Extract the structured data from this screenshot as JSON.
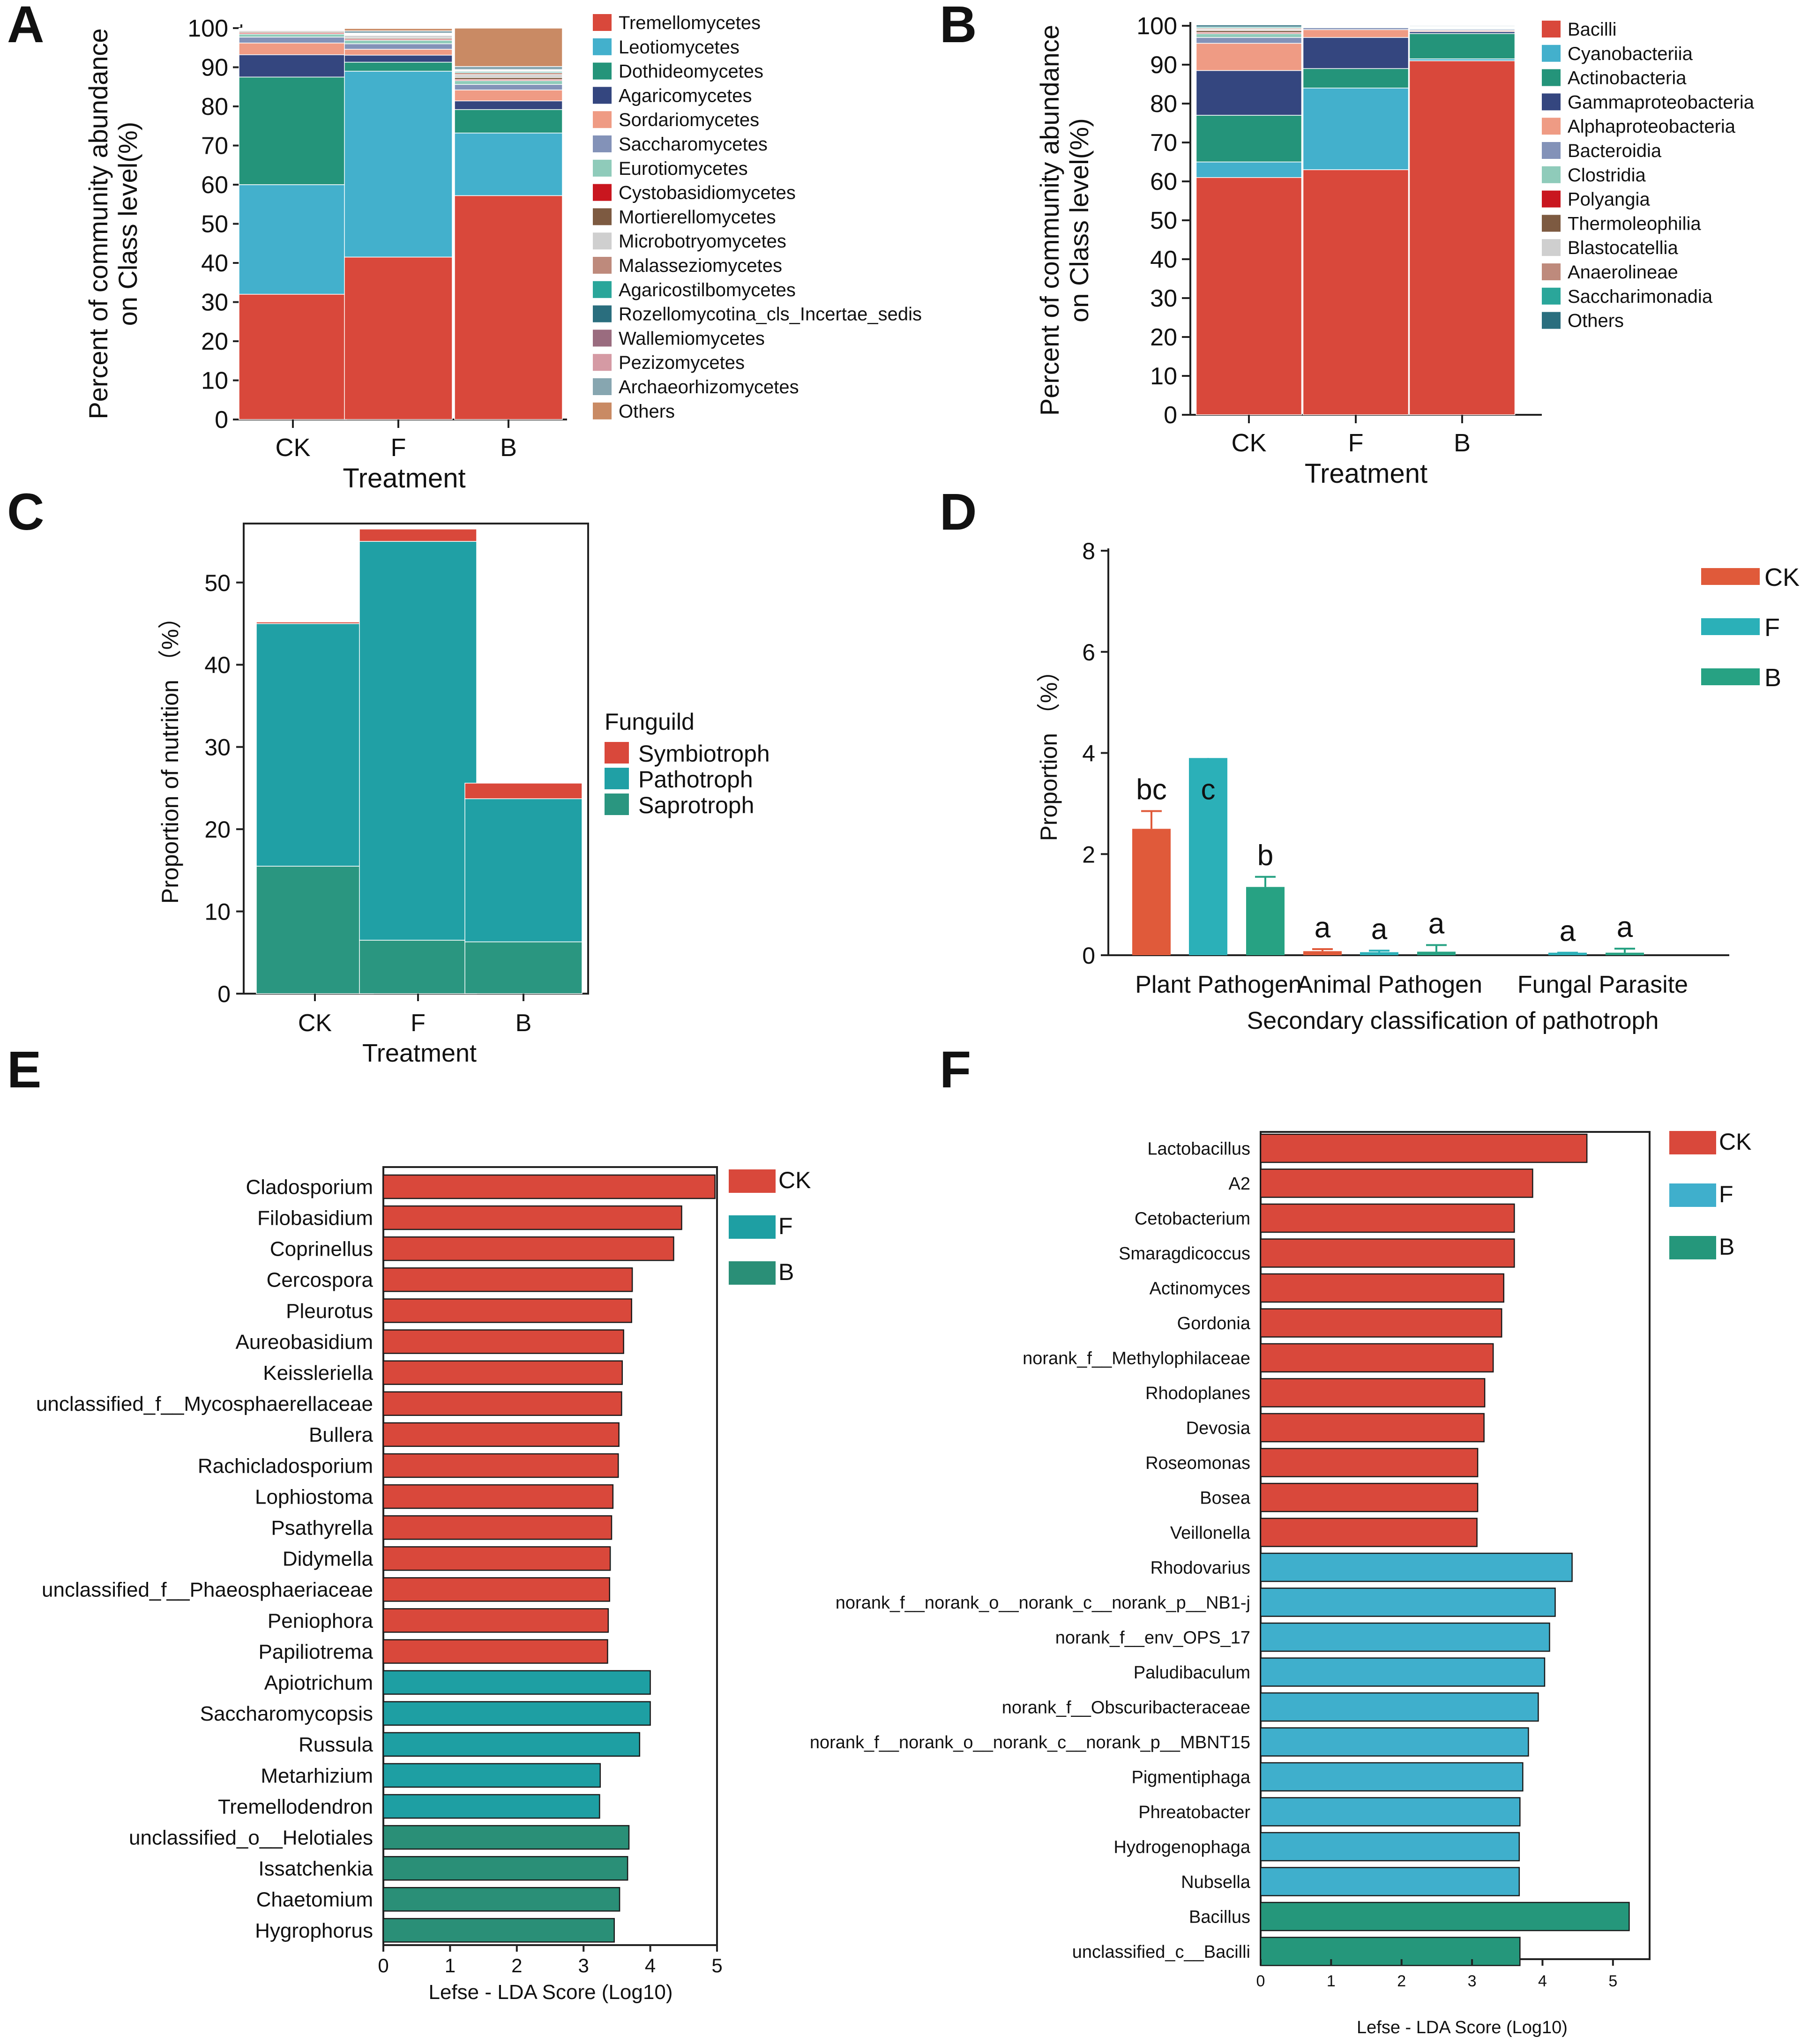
{
  "figure": {
    "panels": [
      "A",
      "B",
      "C",
      "D",
      "E",
      "F"
    ]
  },
  "colors": {
    "A": [
      "#d9483b",
      "#43b0cc",
      "#24947a",
      "#34467f",
      "#ef9b84",
      "#8392b8",
      "#8fcbba",
      "#c9161f",
      "#7d5a41",
      "#cfcfcf",
      "#be8a7c",
      "#2aa69a",
      "#2a6e7e",
      "#9a6c7f",
      "#d59aa4",
      "#87a6b0",
      "#c98a64"
    ],
    "B": [
      "#d9483b",
      "#43b0cc",
      "#24947a",
      "#34467f",
      "#ef9b84",
      "#8392b8",
      "#8fcbba",
      "#c9161f",
      "#7d5a41",
      "#cfcfcf",
      "#be8a7c",
      "#2aa69a",
      "#2a6e7e"
    ],
    "C": [
      "#2a9680",
      "#20a0a5",
      "#d9483b"
    ],
    "D": [
      "#e05a3a",
      "#2bb0b8",
      "#27a283"
    ],
    "E": {
      "CK": "#d9483b",
      "F": "#1e9fa3",
      "B": "#2a8f77"
    },
    "F": {
      "CK": "#d9483b",
      "F": "#3fafcc",
      "B": "#25977b"
    }
  },
  "chart_data": [
    {
      "panel": "A",
      "type": "bar",
      "stacked": true,
      "ylabel": "Percent of community abundance\non Class level(%)",
      "xlabel": "Treatment",
      "categories": [
        "CK",
        "F",
        "B"
      ],
      "ylim": [
        0,
        100
      ],
      "yticks": [
        "0",
        "10",
        "20",
        "30",
        "40",
        "50",
        "60",
        "70",
        "80",
        "90",
        "100"
      ],
      "series": [
        {
          "name": "Tremellomycetes",
          "values": [
            32,
            41.5,
            57.2
          ]
        },
        {
          "name": "Leotiomycetes",
          "values": [
            28,
            47.5,
            16
          ]
        },
        {
          "name": "Dothideomycetes",
          "values": [
            27.5,
            2.3,
            6
          ]
        },
        {
          "name": "Agaricomycetes",
          "values": [
            5.7,
            1.8,
            2.2
          ]
        },
        {
          "name": "Sordariomycetes",
          "values": [
            3,
            1.5,
            2.8
          ]
        },
        {
          "name": "Saccharomycetes",
          "values": [
            1.5,
            1.4,
            1.4
          ]
        },
        {
          "name": "Eurotiomycetes",
          "values": [
            0.8,
            0.9,
            1
          ]
        },
        {
          "name": "Cystobasidiomycetes",
          "values": [
            0.3,
            0.3,
            0.3
          ]
        },
        {
          "name": "Mortierellomycetes",
          "values": [
            0.3,
            0.3,
            0.5
          ]
        },
        {
          "name": "Microbotryomycetes",
          "values": [
            0.3,
            0.6,
            0.7
          ]
        },
        {
          "name": "Malasseziomycetes",
          "values": [
            0.1,
            0.2,
            0.5
          ]
        },
        {
          "name": "Agaricostilbomycetes",
          "values": [
            0.1,
            0.1,
            0.3
          ]
        },
        {
          "name": "Rozellomycotina_cls_Incertae_sedis",
          "values": [
            0.1,
            0.1,
            0.1
          ]
        },
        {
          "name": "Wallemiomycetes",
          "values": [
            0.1,
            0.1,
            0.2
          ]
        },
        {
          "name": "Pezizomycetes",
          "values": [
            0.1,
            0.1,
            0.2
          ]
        },
        {
          "name": "Archaeorhizomycetes",
          "values": [
            0.1,
            0.6,
            0.8
          ]
        },
        {
          "name": "Others",
          "values": [
            0,
            0.6,
            9.8
          ]
        }
      ]
    },
    {
      "panel": "B",
      "type": "bar",
      "stacked": true,
      "ylabel": "Percent of community abundance\non Class level(%)",
      "xlabel": "Treatment",
      "categories": [
        "CK",
        "F",
        "B"
      ],
      "ylim": [
        0,
        100
      ],
      "yticks": [
        "0",
        "10",
        "20",
        "30",
        "40",
        "50",
        "60",
        "70",
        "80",
        "90",
        "100"
      ],
      "series": [
        {
          "name": "Bacilli",
          "values": [
            61,
            63,
            91
          ]
        },
        {
          "name": "Cyanobacteriia",
          "values": [
            4,
            21,
            0.5
          ]
        },
        {
          "name": "Actinobacteria",
          "values": [
            12,
            5,
            6.5
          ]
        },
        {
          "name": "Gammaproteobacteria",
          "values": [
            11.5,
            8,
            0.5
          ]
        },
        {
          "name": "Alphaproteobacteria",
          "values": [
            7,
            2,
            0.3
          ]
        },
        {
          "name": "Bacteroidia",
          "values": [
            1.5,
            0.5,
            0.3
          ]
        },
        {
          "name": "Clostridia",
          "values": [
            1,
            0.2,
            0.2
          ]
        },
        {
          "name": "Polyangia",
          "values": [
            0.3,
            0.1,
            0.1
          ]
        },
        {
          "name": "Thermoleophilia",
          "values": [
            0.5,
            0.1,
            0.1
          ]
        },
        {
          "name": "Blastocatellia",
          "values": [
            0.3,
            0.1,
            0.1
          ]
        },
        {
          "name": "Anaerolineae",
          "values": [
            0.3,
            0.1,
            0.1
          ]
        },
        {
          "name": "Saccharimonadia",
          "values": [
            0.3,
            0.1,
            0.1
          ]
        },
        {
          "name": "Others",
          "values": [
            0.5,
            0.1,
            0.2
          ]
        }
      ]
    },
    {
      "panel": "C",
      "type": "bar",
      "stacked": true,
      "ylabel": "Proportion of nutrition （%）",
      "xlabel": "Treatment",
      "legend_title": "Funguild",
      "categories": [
        "CK",
        "F",
        "B"
      ],
      "ylim": [
        0,
        57
      ],
      "yticks": [
        "0",
        "10",
        "20",
        "30",
        "40",
        "50"
      ],
      "series": [
        {
          "name": "Saprotroph",
          "values": [
            15.5,
            6.5,
            6.3
          ]
        },
        {
          "name": "Pathotroph",
          "values": [
            29.5,
            48.5,
            17.4
          ]
        },
        {
          "name": "Symbiotroph",
          "values": [
            0.2,
            1.5,
            1.9
          ]
        }
      ],
      "legend_order": [
        "Symbiotroph",
        "Pathotroph",
        "Saprotroph"
      ]
    },
    {
      "panel": "D",
      "type": "bar",
      "grouped": true,
      "ylabel": "Proportion （%）",
      "xlabel": "Secondary classification of pathotroph",
      "categories": [
        "Plant Pathogen",
        "Animal Pathogen",
        "Fungal Parasite"
      ],
      "ylim": [
        0,
        8
      ],
      "yticks": [
        "0",
        "2",
        "4",
        "6",
        "8"
      ],
      "series": [
        {
          "name": "CK",
          "values": [
            2.5,
            0.08,
            0
          ],
          "errors": [
            2.85,
            0.12,
            0
          ],
          "letters": [
            "bc",
            "a",
            ""
          ]
        },
        {
          "name": "F",
          "values": [
            3.9,
            0.06,
            0.05
          ],
          "errors": [
            2.85,
            0.09,
            0.05
          ],
          "letters": [
            "c",
            "a",
            "a"
          ]
        },
        {
          "name": "B",
          "values": [
            1.35,
            0.07,
            0.05
          ],
          "errors": [
            1.55,
            0.2,
            0.13
          ],
          "letters": [
            "b",
            "a",
            "a"
          ]
        }
      ]
    },
    {
      "panel": "E",
      "type": "bar",
      "orientation": "horizontal",
      "xlabel": "Lefse - LDA Score (Log10)",
      "xlim": [
        0,
        5
      ],
      "xticks": [
        "0",
        "1",
        "2",
        "3",
        "4",
        "5"
      ],
      "legend": [
        "CK",
        "F",
        "B"
      ],
      "bars": [
        {
          "label": "Cladosporium",
          "group": "CK",
          "value": 4.97
        },
        {
          "label": "Filobasidium",
          "group": "CK",
          "value": 4.47
        },
        {
          "label": "Coprinellus",
          "group": "CK",
          "value": 4.35
        },
        {
          "label": "Cercospora",
          "group": "CK",
          "value": 3.73
        },
        {
          "label": "Pleurotus",
          "group": "CK",
          "value": 3.72
        },
        {
          "label": "Aureobasidium",
          "group": "CK",
          "value": 3.6
        },
        {
          "label": "Keissleriella",
          "group": "CK",
          "value": 3.58
        },
        {
          "label": "unclassified_f__Mycosphaerellaceae",
          "group": "CK",
          "value": 3.57
        },
        {
          "label": "Bullera",
          "group": "CK",
          "value": 3.53
        },
        {
          "label": "Rachicladosporium",
          "group": "CK",
          "value": 3.52
        },
        {
          "label": "Lophiostoma",
          "group": "CK",
          "value": 3.44
        },
        {
          "label": "Psathyrella",
          "group": "CK",
          "value": 3.42
        },
        {
          "label": "Didymella",
          "group": "CK",
          "value": 3.4
        },
        {
          "label": "unclassified_f__Phaeosphaeriaceae",
          "group": "CK",
          "value": 3.39
        },
        {
          "label": "Peniophora",
          "group": "CK",
          "value": 3.37
        },
        {
          "label": "Papiliotrema",
          "group": "CK",
          "value": 3.36
        },
        {
          "label": "Apiotrichum",
          "group": "F",
          "value": 4.0
        },
        {
          "label": "Saccharomycopsis",
          "group": "F",
          "value": 4.0
        },
        {
          "label": "Russula",
          "group": "F",
          "value": 3.84
        },
        {
          "label": "Metarhizium",
          "group": "F",
          "value": 3.25
        },
        {
          "label": "Tremellodendron",
          "group": "F",
          "value": 3.24
        },
        {
          "label": "unclassified_o__Helotiales",
          "group": "B",
          "value": 3.68
        },
        {
          "label": "Issatchenkia",
          "group": "B",
          "value": 3.66
        },
        {
          "label": "Chaetomium",
          "group": "B",
          "value": 3.54
        },
        {
          "label": "Hygrophorus",
          "group": "B",
          "value": 3.46
        }
      ]
    },
    {
      "panel": "F",
      "type": "bar",
      "orientation": "horizontal",
      "xlabel": "Lefse - LDA Score (Log10)",
      "xlim": [
        0,
        5.5
      ],
      "xticks": [
        "0",
        "1",
        "2",
        "3",
        "4",
        "5"
      ],
      "legend": [
        "CK",
        "F",
        "B"
      ],
      "bars": [
        {
          "label": "Lactobacillus",
          "group": "CK",
          "value": 4.63
        },
        {
          "label": "A2",
          "group": "CK",
          "value": 3.86
        },
        {
          "label": "Cetobacterium",
          "group": "CK",
          "value": 3.6
        },
        {
          "label": "Smaragdicoccus",
          "group": "CK",
          "value": 3.6
        },
        {
          "label": "Actinomyces",
          "group": "CK",
          "value": 3.45
        },
        {
          "label": "Gordonia",
          "group": "CK",
          "value": 3.42
        },
        {
          "label": "norank_f__Methylophilaceae",
          "group": "CK",
          "value": 3.3
        },
        {
          "label": "Rhodoplanes",
          "group": "CK",
          "value": 3.18
        },
        {
          "label": "Devosia",
          "group": "CK",
          "value": 3.17
        },
        {
          "label": "Roseomonas",
          "group": "CK",
          "value": 3.08
        },
        {
          "label": "Bosea",
          "group": "CK",
          "value": 3.08
        },
        {
          "label": "Veillonella",
          "group": "CK",
          "value": 3.07
        },
        {
          "label": "Rhodovarius",
          "group": "F",
          "value": 4.42
        },
        {
          "label": "norank_f__norank_o__norank_c__norank_p__NB1-j",
          "group": "F",
          "value": 4.18
        },
        {
          "label": "norank_f__env_OPS_17",
          "group": "F",
          "value": 4.1
        },
        {
          "label": "Paludibaculum",
          "group": "F",
          "value": 4.03
        },
        {
          "label": "norank_f__Obscuribacteraceae",
          "group": "F",
          "value": 3.94
        },
        {
          "label": "norank_f__norank_o__norank_c__norank_p__MBNT15",
          "group": "F",
          "value": 3.8
        },
        {
          "label": "Pigmentiphaga",
          "group": "F",
          "value": 3.72
        },
        {
          "label": "Phreatobacter",
          "group": "F",
          "value": 3.68
        },
        {
          "label": "Hydrogenophaga",
          "group": "F",
          "value": 3.67
        },
        {
          "label": "Nubsella",
          "group": "F",
          "value": 3.67
        },
        {
          "label": "Bacillus",
          "group": "B",
          "value": 5.23
        },
        {
          "label": "unclassified_c__Bacilli",
          "group": "B",
          "value": 3.68
        }
      ]
    }
  ]
}
